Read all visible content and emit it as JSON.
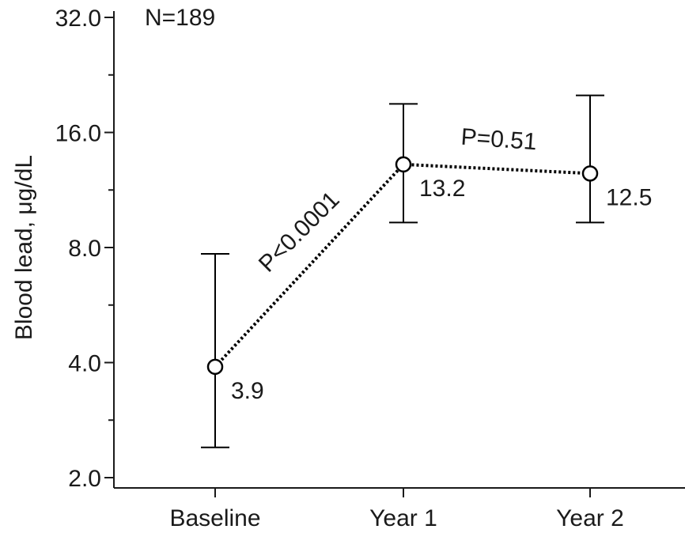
{
  "chart_data": {
    "type": "line",
    "scale": "log2",
    "ylabel": "Blood lead, μg/dL",
    "xlabel": "",
    "ylim": [
      2.0,
      32.0
    ],
    "yticks": [
      2.0,
      4.0,
      8.0,
      16.0,
      32.0
    ],
    "ytick_labels": [
      "2.0",
      "4.0",
      "8.0",
      "16.0",
      "32.0"
    ],
    "categories": [
      "Baseline",
      "Year 1",
      "Year 2"
    ],
    "series": [
      {
        "values": [
          3.9,
          13.2,
          12.5
        ],
        "lower": [
          2.4,
          9.3,
          9.3
        ],
        "upper": [
          7.7,
          19.0,
          20.0
        ],
        "value_labels": [
          "3.9",
          "13.2",
          "12.5"
        ]
      }
    ],
    "annotations": {
      "n_label": "N=189",
      "p_baseline_year1": "P<0.0001",
      "p_year1_year2": "P=0.51"
    },
    "grid": false,
    "line_style": "dotted",
    "marker": "open-circle",
    "colors": {
      "line": "#000000",
      "axis": "#1a1a1a",
      "marker_fill": "#ffffff"
    }
  }
}
